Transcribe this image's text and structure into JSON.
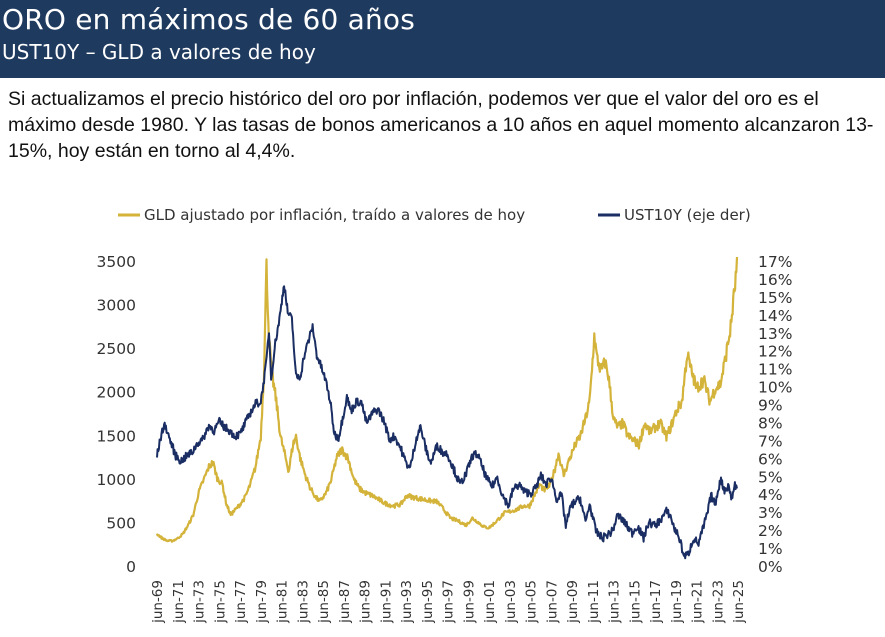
{
  "header": {
    "title": "ORO en máximos de 60 años",
    "subtitle": "UST10Y – GLD a valores de hoy"
  },
  "body_text": "Si actualizamos el precio histórico del oro por inflación, podemos ver que el valor del oro es el máximo desde 1980. Y las tasas de bonos americanos a 10 años en aquel momento alcanzaron 13-15%, hoy están en torno al 4,4%.",
  "colors": {
    "header_bg": "#1f3a5f",
    "gold": "#d4b33a",
    "navy": "#1b2e63"
  },
  "chart_data": {
    "type": "line",
    "x_axis": {
      "ticks": [
        "jun-69",
        "jun-71",
        "jun-73",
        "jun-75",
        "jun-77",
        "jun-79",
        "jun-81",
        "jun-83",
        "jun-85",
        "jun-87",
        "jun-89",
        "jun-91",
        "jun-93",
        "jun-95",
        "jun-97",
        "jun-99",
        "jun-01",
        "jun-03",
        "jun-05",
        "jun-07",
        "jun-09",
        "jun-11",
        "jun-13",
        "jun-15",
        "jun-17",
        "jun-19",
        "jun-21",
        "jun-23",
        "jun-25"
      ],
      "range": [
        1969.5,
        2025.5
      ]
    },
    "y_left": {
      "ticks": [
        "0",
        "500",
        "1000",
        "1500",
        "2000",
        "2500",
        "3000",
        "3500"
      ],
      "range": [
        0,
        3500
      ]
    },
    "y_right": {
      "ticks": [
        "0%",
        "1%",
        "2%",
        "3%",
        "4%",
        "5%",
        "6%",
        "7%",
        "8%",
        "9%",
        "10%",
        "11%",
        "12%",
        "13%",
        "14%",
        "15%",
        "16%",
        "17%"
      ],
      "range": [
        0,
        17
      ]
    },
    "legend": {
      "position": "top"
    },
    "grid": false,
    "series": [
      {
        "name": "GLD ajustado por inflación, traído a valores de hoy",
        "axis": "left",
        "color": "#d4b33a",
        "points": [
          [
            1969.5,
            380
          ],
          [
            1970.0,
            330
          ],
          [
            1970.5,
            300
          ],
          [
            1971.0,
            300
          ],
          [
            1971.5,
            330
          ],
          [
            1972.0,
            380
          ],
          [
            1972.5,
            480
          ],
          [
            1973.0,
            600
          ],
          [
            1973.5,
            850
          ],
          [
            1974.0,
            1000
          ],
          [
            1974.5,
            1150
          ],
          [
            1974.9,
            1200
          ],
          [
            1975.3,
            1020
          ],
          [
            1975.8,
            950
          ],
          [
            1976.2,
            720
          ],
          [
            1976.6,
            600
          ],
          [
            1977.0,
            650
          ],
          [
            1977.5,
            720
          ],
          [
            1978.0,
            800
          ],
          [
            1978.5,
            950
          ],
          [
            1979.0,
            1150
          ],
          [
            1979.5,
            1500
          ],
          [
            1979.8,
            2200
          ],
          [
            1980.05,
            3450
          ],
          [
            1980.3,
            2600
          ],
          [
            1980.6,
            2200
          ],
          [
            1981.0,
            1900
          ],
          [
            1981.4,
            1500
          ],
          [
            1981.8,
            1300
          ],
          [
            1982.2,
            1100
          ],
          [
            1982.6,
            1400
          ],
          [
            1982.9,
            1500
          ],
          [
            1983.3,
            1250
          ],
          [
            1983.8,
            1050
          ],
          [
            1984.3,
            900
          ],
          [
            1984.8,
            800
          ],
          [
            1985.2,
            750
          ],
          [
            1985.8,
            850
          ],
          [
            1986.3,
            1000
          ],
          [
            1986.8,
            1250
          ],
          [
            1987.3,
            1350
          ],
          [
            1987.9,
            1250
          ],
          [
            1988.5,
            1000
          ],
          [
            1989.0,
            900
          ],
          [
            1989.6,
            850
          ],
          [
            1990.2,
            820
          ],
          [
            1990.8,
            780
          ],
          [
            1991.5,
            730
          ],
          [
            1992.3,
            700
          ],
          [
            1993.0,
            720
          ],
          [
            1993.6,
            820
          ],
          [
            1994.2,
            800
          ],
          [
            1995.0,
            780
          ],
          [
            1995.8,
            760
          ],
          [
            1996.5,
            750
          ],
          [
            1997.0,
            680
          ],
          [
            1997.8,
            560
          ],
          [
            1998.5,
            530
          ],
          [
            1999.3,
            480
          ],
          [
            1999.9,
            560
          ],
          [
            2000.5,
            510
          ],
          [
            2001.0,
            460
          ],
          [
            2001.5,
            450
          ],
          [
            2002.0,
            500
          ],
          [
            2002.5,
            560
          ],
          [
            2003.0,
            620
          ],
          [
            2003.6,
            640
          ],
          [
            2004.2,
            660
          ],
          [
            2004.8,
            700
          ],
          [
            2005.4,
            700
          ],
          [
            2005.9,
            830
          ],
          [
            2006.4,
            950
          ],
          [
            2006.8,
            880
          ],
          [
            2007.3,
            930
          ],
          [
            2007.8,
            1100
          ],
          [
            2008.2,
            1300
          ],
          [
            2008.7,
            1050
          ],
          [
            2009.2,
            1220
          ],
          [
            2009.8,
            1400
          ],
          [
            2010.3,
            1500
          ],
          [
            2010.8,
            1700
          ],
          [
            2011.2,
            1900
          ],
          [
            2011.65,
            2650
          ],
          [
            2011.9,
            2400
          ],
          [
            2012.3,
            2250
          ],
          [
            2012.7,
            2350
          ],
          [
            2013.0,
            2200
          ],
          [
            2013.5,
            1700
          ],
          [
            2013.9,
            1600
          ],
          [
            2014.4,
            1650
          ],
          [
            2014.9,
            1500
          ],
          [
            2015.5,
            1450
          ],
          [
            2015.95,
            1400
          ],
          [
            2016.5,
            1650
          ],
          [
            2017.0,
            1550
          ],
          [
            2017.5,
            1600
          ],
          [
            2018.0,
            1650
          ],
          [
            2018.6,
            1500
          ],
          [
            2019.0,
            1600
          ],
          [
            2019.6,
            1800
          ],
          [
            2020.1,
            1900
          ],
          [
            2020.6,
            2450
          ],
          [
            2021.0,
            2250
          ],
          [
            2021.5,
            2050
          ],
          [
            2022.2,
            2150
          ],
          [
            2022.8,
            1900
          ],
          [
            2023.3,
            2050
          ],
          [
            2023.8,
            2100
          ],
          [
            2024.3,
            2400
          ],
          [
            2024.8,
            2750
          ],
          [
            2025.1,
            3100
          ],
          [
            2025.4,
            3450
          ]
        ]
      },
      {
        "name": "UST10Y (eje der)",
        "axis": "right",
        "color": "#1b2e63",
        "points": [
          [
            1969.5,
            6.2
          ],
          [
            1970.0,
            7.6
          ],
          [
            1970.3,
            7.9
          ],
          [
            1970.8,
            7.0
          ],
          [
            1971.3,
            6.2
          ],
          [
            1971.8,
            5.9
          ],
          [
            1972.4,
            6.2
          ],
          [
            1972.9,
            6.4
          ],
          [
            1973.4,
            6.9
          ],
          [
            1973.9,
            7.1
          ],
          [
            1974.5,
            7.9
          ],
          [
            1975.0,
            7.6
          ],
          [
            1975.5,
            8.1
          ],
          [
            1976.0,
            7.8
          ],
          [
            1976.5,
            7.6
          ],
          [
            1977.0,
            7.3
          ],
          [
            1977.5,
            7.4
          ],
          [
            1978.0,
            8.0
          ],
          [
            1978.5,
            8.6
          ],
          [
            1979.0,
            9.1
          ],
          [
            1979.5,
            9.2
          ],
          [
            1980.0,
            11.2
          ],
          [
            1980.3,
            13.2
          ],
          [
            1980.5,
            10.5
          ],
          [
            1980.9,
            12.5
          ],
          [
            1981.3,
            13.8
          ],
          [
            1981.75,
            15.8
          ],
          [
            1982.1,
            14.2
          ],
          [
            1982.5,
            13.8
          ],
          [
            1982.9,
            10.6
          ],
          [
            1983.3,
            10.6
          ],
          [
            1983.7,
            11.8
          ],
          [
            1984.2,
            12.8
          ],
          [
            1984.5,
            13.4
          ],
          [
            1984.9,
            11.8
          ],
          [
            1985.3,
            11.2
          ],
          [
            1985.8,
            10.3
          ],
          [
            1986.2,
            9.2
          ],
          [
            1986.6,
            7.4
          ],
          [
            1987.0,
            7.2
          ],
          [
            1987.4,
            8.3
          ],
          [
            1987.8,
            9.5
          ],
          [
            1988.2,
            8.7
          ],
          [
            1988.7,
            9.2
          ],
          [
            1989.2,
            9.2
          ],
          [
            1989.7,
            8.0
          ],
          [
            1990.3,
            8.6
          ],
          [
            1990.8,
            8.8
          ],
          [
            1991.4,
            8.1
          ],
          [
            1991.9,
            7.1
          ],
          [
            1992.4,
            7.3
          ],
          [
            1993.0,
            6.6
          ],
          [
            1993.5,
            5.8
          ],
          [
            1993.9,
            5.5
          ],
          [
            1994.5,
            7.2
          ],
          [
            1994.9,
            7.8
          ],
          [
            1995.5,
            6.4
          ],
          [
            1995.9,
            5.8
          ],
          [
            1996.5,
            6.8
          ],
          [
            1997.0,
            6.4
          ],
          [
            1997.5,
            6.3
          ],
          [
            1998.0,
            5.6
          ],
          [
            1998.7,
            4.6
          ],
          [
            1999.3,
            5.2
          ],
          [
            1999.9,
            6.2
          ],
          [
            2000.4,
            6.3
          ],
          [
            2000.9,
            5.5
          ],
          [
            2001.3,
            4.9
          ],
          [
            2001.8,
            4.5
          ],
          [
            2002.3,
            5.0
          ],
          [
            2002.8,
            4.0
          ],
          [
            2003.4,
            3.4
          ],
          [
            2003.8,
            4.3
          ],
          [
            2004.4,
            4.6
          ],
          [
            2004.9,
            4.2
          ],
          [
            2005.5,
            4.1
          ],
          [
            2006.0,
            4.4
          ],
          [
            2006.5,
            5.1
          ],
          [
            2007.0,
            4.6
          ],
          [
            2007.5,
            5.0
          ],
          [
            2008.0,
            3.8
          ],
          [
            2008.5,
            4.0
          ],
          [
            2008.9,
            2.3
          ],
          [
            2009.4,
            3.4
          ],
          [
            2009.9,
            3.7
          ],
          [
            2010.3,
            3.8
          ],
          [
            2010.8,
            2.5
          ],
          [
            2011.2,
            3.5
          ],
          [
            2011.8,
            2.0
          ],
          [
            2012.4,
            1.6
          ],
          [
            2012.9,
            1.8
          ],
          [
            2013.4,
            2.0
          ],
          [
            2013.9,
            2.9
          ],
          [
            2014.4,
            2.6
          ],
          [
            2014.9,
            2.2
          ],
          [
            2015.3,
            1.9
          ],
          [
            2015.8,
            2.3
          ],
          [
            2016.4,
            1.6
          ],
          [
            2016.9,
            2.5
          ],
          [
            2017.5,
            2.3
          ],
          [
            2018.0,
            2.6
          ],
          [
            2018.6,
            3.1
          ],
          [
            2018.95,
            2.9
          ],
          [
            2019.4,
            2.1
          ],
          [
            2019.8,
            1.7
          ],
          [
            2020.3,
            0.6
          ],
          [
            2020.7,
            0.7
          ],
          [
            2021.2,
            1.6
          ],
          [
            2021.7,
            1.3
          ],
          [
            2022.2,
            2.3
          ],
          [
            2022.6,
            3.1
          ],
          [
            2022.9,
            4.0
          ],
          [
            2023.3,
            3.5
          ],
          [
            2023.8,
            4.9
          ],
          [
            2024.2,
            4.3
          ],
          [
            2024.6,
            4.5
          ],
          [
            2024.9,
            3.8
          ],
          [
            2025.2,
            4.6
          ],
          [
            2025.4,
            4.4
          ]
        ]
      }
    ]
  }
}
